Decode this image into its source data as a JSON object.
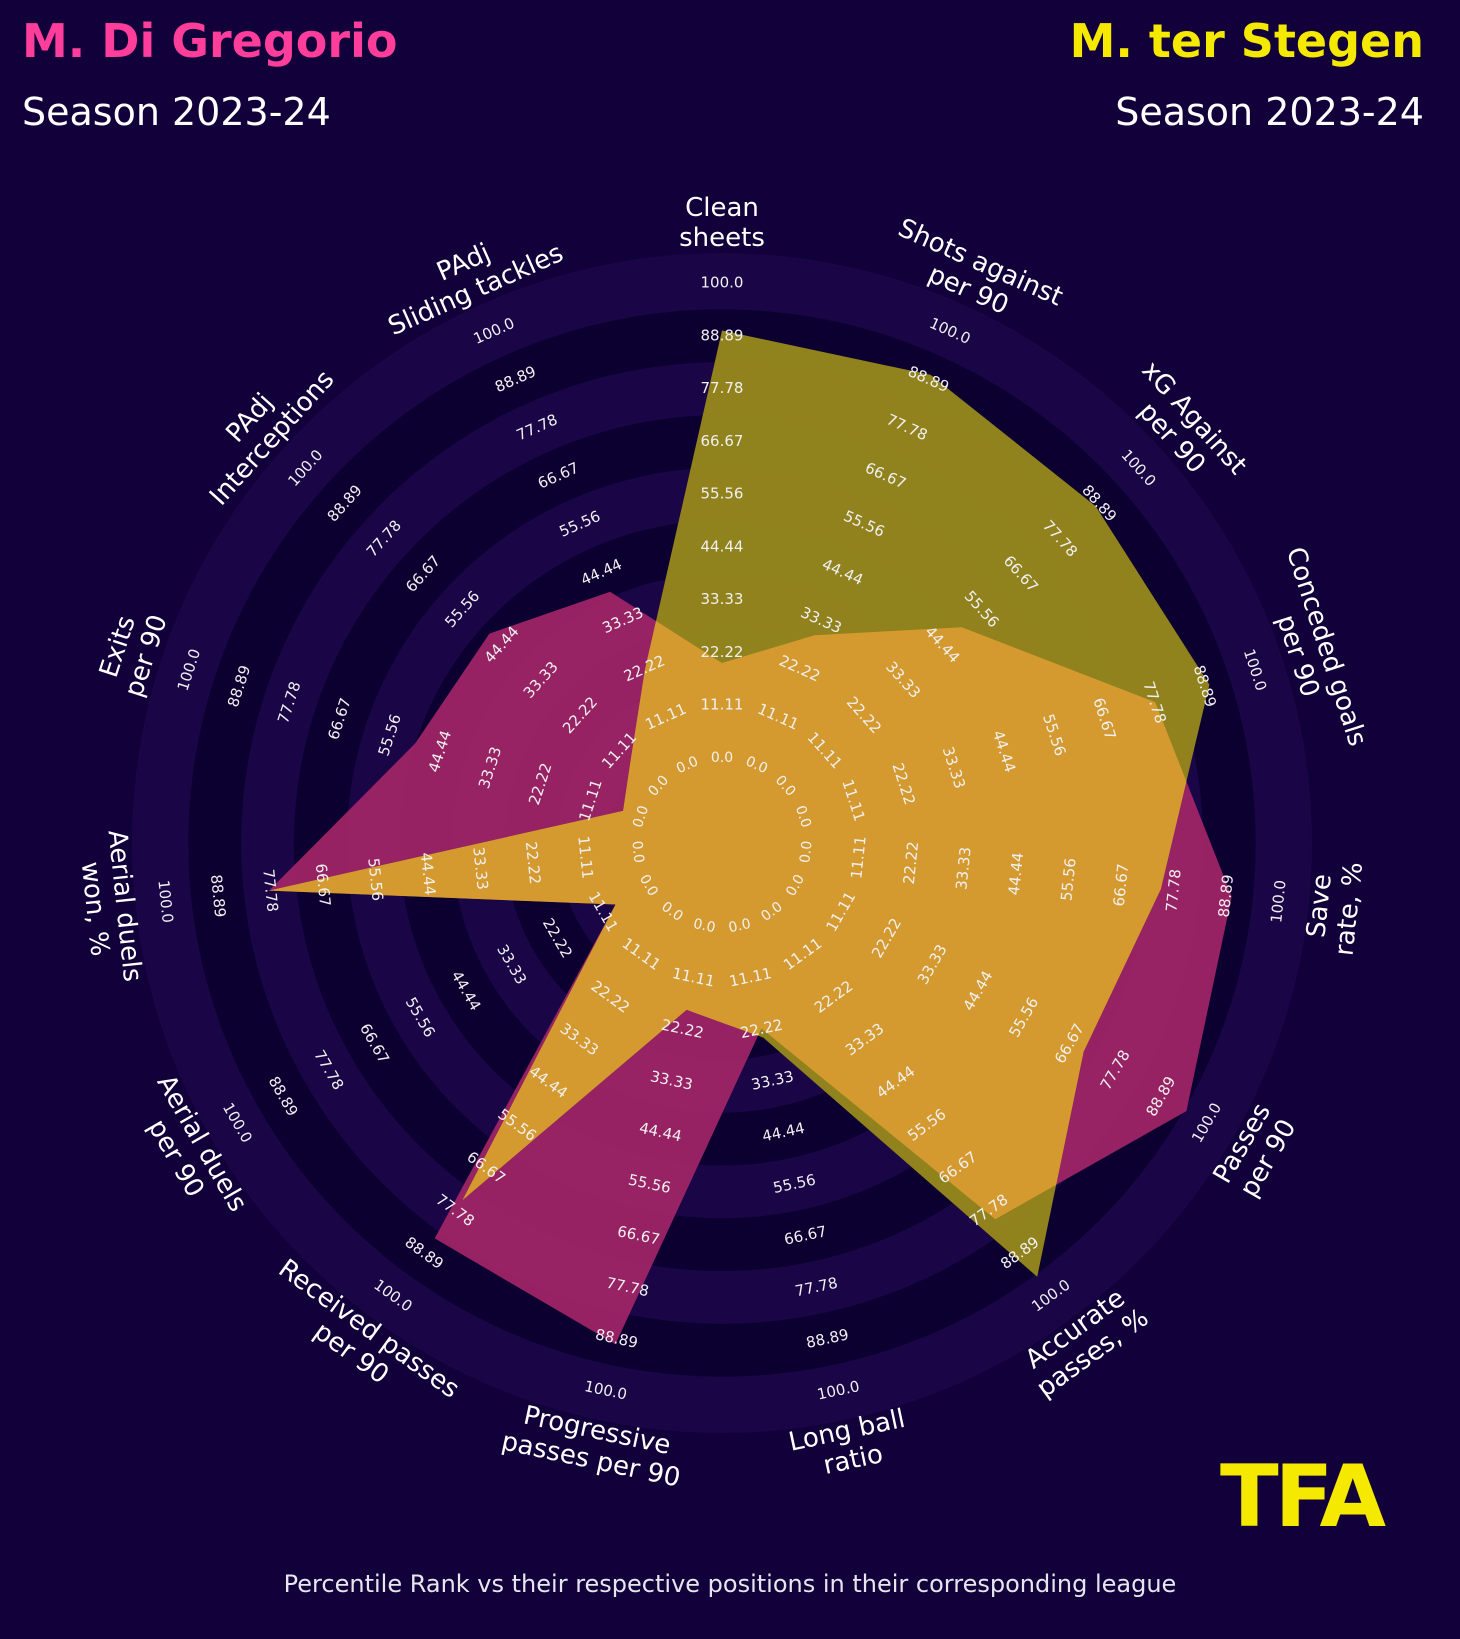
{
  "players": [
    {
      "name": "M. Di Gregorio",
      "season": "Season 2023-24",
      "color": "#ff3d9a",
      "fill": "#9e2466"
    },
    {
      "name": "M. ter Stegen",
      "season": "Season 2023-24",
      "color": "#f5e900",
      "fill": "#98891c"
    }
  ],
  "overlap_color": "#d49a2f",
  "footnote": "Percentile Rank vs their respective positions in their corresponding league",
  "logo_text": "TFA",
  "chart_data": {
    "type": "radar",
    "categories": [
      "Clean sheets",
      "Shots against per 90",
      "xG Against per 90",
      "Conceded goals per 90",
      "Save rate, %",
      "Passes per 90",
      "Accurate passes, %",
      "Long ball ratio",
      "Progressive passes per 90",
      "Received passes per 90",
      "Aerial duels per 90",
      "Aerial duels won, %",
      "Exits per 90",
      "PAdj Interceptions",
      "PAdj Sliding tackles"
    ],
    "category_labels": [
      [
        "Clean",
        "sheets"
      ],
      [
        "Shots against",
        "per 90"
      ],
      [
        "xG Against",
        "per 90"
      ],
      [
        "Conceded goals",
        "per 90"
      ],
      [
        "Save",
        "rate, %"
      ],
      [
        "Passes",
        "per 90"
      ],
      [
        "Accurate",
        "passes, %"
      ],
      [
        "Long ball",
        "ratio"
      ],
      [
        "Progressive",
        "passes per 90"
      ],
      [
        "Received passes",
        "per 90"
      ],
      [
        "Aerial duels",
        "per 90"
      ],
      [
        "Aerial duels",
        "won, %"
      ],
      [
        "Exits",
        "per 90"
      ],
      [
        "PAdj",
        "Interceptions"
      ],
      [
        "PAdj",
        "Sliding tackles"
      ]
    ],
    "ticks": [
      "0.0",
      "11.11",
      "22.22",
      "33.33",
      "44.44",
      "55.56",
      "66.67",
      "77.78",
      "88.89",
      "100.0"
    ],
    "range": [
      0,
      100
    ],
    "series": [
      {
        "name": "M. Di Gregorio",
        "values": [
          20,
          30,
          50,
          78,
          90,
          95,
          80,
          22,
          90,
          85,
          8,
          78,
          50,
          48,
          40
        ]
      },
      {
        "name": "M. ter Stegen",
        "values": [
          90,
          90,
          88,
          90,
          75,
          70,
          95,
          24,
          18,
          75,
          8,
          78,
          4,
          8,
          22
        ]
      }
    ]
  }
}
